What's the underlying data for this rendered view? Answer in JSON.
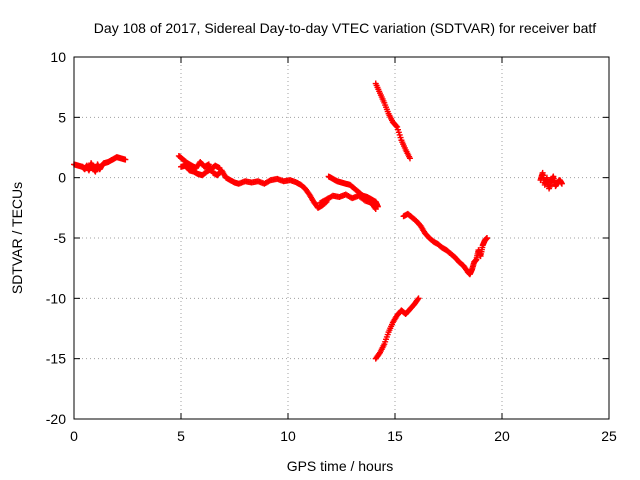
{
  "chart_data": {
    "type": "scatter",
    "title": "Day 108 of 2017, Sidereal Day-to-day VTEC variation (SDTVAR) for receiver batf",
    "xlabel": "GPS time / hours",
    "ylabel": "SDTVAR / TECUs",
    "xlim": [
      0,
      25
    ],
    "ylim": [
      -20,
      10
    ],
    "x_ticks": [
      0,
      5,
      10,
      15,
      20,
      25
    ],
    "y_ticks": [
      -20,
      -15,
      -10,
      -5,
      0,
      5,
      10
    ],
    "x_tick_labels": [
      "0",
      "5",
      "10",
      "15",
      "20",
      "25"
    ],
    "y_tick_labels": [
      "-20",
      "-15",
      "-10",
      "-5",
      "0",
      "5",
      "10"
    ],
    "grid": true,
    "legend": "none",
    "colors": {
      "series": "#ff0000",
      "axis": "#000000",
      "grid": "#a0a0a0"
    },
    "series": [
      {
        "name": "seg1",
        "x": [
          0.0,
          0.2,
          0.4,
          0.5,
          0.6,
          0.7,
          0.8,
          0.9,
          1.0,
          1.1,
          1.2,
          1.3,
          1.4,
          1.6,
          1.8,
          2.0,
          2.2,
          2.4
        ],
        "y": [
          1.1,
          1.0,
          0.9,
          0.7,
          1.0,
          0.6,
          1.2,
          0.8,
          0.5,
          1.1,
          0.7,
          1.0,
          1.2,
          1.3,
          1.5,
          1.7,
          1.6,
          1.5
        ]
      },
      {
        "name": "seg2",
        "x": [
          4.9,
          5.1,
          5.3,
          5.5,
          5.7,
          5.9,
          6.1,
          6.3,
          6.5,
          6.7,
          6.9,
          7.1,
          7.3,
          7.5,
          7.7,
          8.0,
          8.3,
          8.6,
          8.9,
          9.2,
          9.5,
          9.8,
          10.1,
          10.4,
          10.6,
          10.8,
          11.0,
          11.2,
          11.4,
          11.6,
          11.8
        ],
        "y": [
          1.8,
          1.5,
          1.2,
          1.0,
          0.8,
          1.3,
          0.9,
          1.1,
          0.4,
          0.2,
          0.6,
          0.0,
          -0.2,
          -0.4,
          -0.5,
          -0.3,
          -0.4,
          -0.3,
          -0.5,
          -0.2,
          -0.1,
          -0.3,
          -0.2,
          -0.4,
          -0.6,
          -0.9,
          -1.4,
          -2.0,
          -2.5,
          -2.3,
          -2.0
        ]
      },
      {
        "name": "seg2-wide",
        "x": [
          5.0,
          5.2,
          5.4,
          5.6,
          5.8,
          6.0,
          6.2,
          6.4,
          6.6,
          6.8
        ],
        "y": [
          0.9,
          1.0,
          0.6,
          0.5,
          0.3,
          0.2,
          0.5,
          0.7,
          1.0,
          0.8
        ]
      },
      {
        "name": "seg3",
        "x": [
          11.9,
          12.1,
          12.3,
          12.5,
          12.7,
          12.9,
          13.1,
          13.3,
          13.5,
          13.7,
          13.9,
          14.1,
          14.2
        ],
        "y": [
          0.1,
          -0.1,
          -0.3,
          -0.4,
          -0.5,
          -0.6,
          -0.9,
          -1.2,
          -1.5,
          -1.6,
          -1.8,
          -2.0,
          -2.4
        ]
      },
      {
        "name": "seg4",
        "x": [
          11.5,
          11.8,
          12.1,
          12.4,
          12.7,
          13.0,
          13.3,
          13.6,
          13.9,
          14.1
        ],
        "y": [
          -2.1,
          -1.8,
          -1.5,
          -1.6,
          -1.4,
          -1.7,
          -1.5,
          -1.9,
          -2.1,
          -2.6
        ]
      },
      {
        "name": "seg5",
        "x": [
          14.1,
          14.3,
          14.5,
          14.7,
          14.9,
          15.1,
          15.3,
          15.5,
          15.7
        ],
        "y": [
          7.8,
          7.0,
          6.2,
          5.3,
          4.6,
          4.2,
          3.1,
          2.3,
          1.6
        ]
      },
      {
        "name": "seg6",
        "x": [
          14.1,
          14.3,
          14.5,
          14.7,
          14.9,
          15.1,
          15.3,
          15.5,
          15.7,
          15.9,
          16.1
        ],
        "y": [
          -15.0,
          -14.5,
          -13.8,
          -12.8,
          -12.0,
          -11.4,
          -11.0,
          -11.3,
          -10.9,
          -10.5,
          -10.0
        ]
      },
      {
        "name": "seg7",
        "x": [
          15.4,
          15.6,
          15.8,
          16.0,
          16.2,
          16.4,
          16.6,
          16.8,
          17.0,
          17.2,
          17.4,
          17.6,
          17.8,
          18.0,
          18.2,
          18.4,
          18.5,
          18.6,
          18.7,
          18.8,
          18.9,
          19.0,
          19.1,
          19.2,
          19.3
        ],
        "y": [
          -3.2,
          -3.0,
          -3.3,
          -3.6,
          -4.0,
          -4.6,
          -5.0,
          -5.3,
          -5.5,
          -5.8,
          -6.0,
          -6.3,
          -6.6,
          -7.0,
          -7.3,
          -7.8,
          -8.0,
          -7.6,
          -7.0,
          -6.8,
          -6.0,
          -6.5,
          -5.6,
          -5.2,
          -5.0
        ]
      },
      {
        "name": "seg8",
        "x": [
          21.8,
          21.9,
          22.0,
          22.1,
          22.2,
          22.3,
          22.4,
          22.5,
          22.6,
          22.7,
          22.8
        ],
        "y": [
          -0.2,
          0.4,
          -0.6,
          0.0,
          -0.9,
          -0.3,
          0.1,
          -0.7,
          -0.4,
          -0.2,
          -0.5
        ]
      }
    ]
  }
}
